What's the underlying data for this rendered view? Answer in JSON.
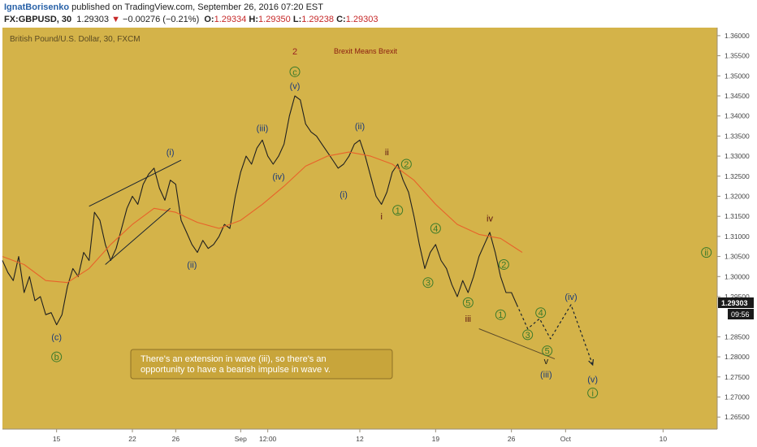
{
  "header": {
    "author": "IgnatBorisenko",
    "published": " published on TradingView.com, September 26, 2016 07:20 EST",
    "symbol": "FX:GBPUSD, 30",
    "last": "1.29303",
    "arrow": "▼",
    "change": "−0.00276 (−0.21%)",
    "o_label": "O:",
    "o": "1.29334",
    "h_label": "H:",
    "h": "1.29350",
    "l_label": "L:",
    "l": "1.29238",
    "c_label": "C:",
    "c": "1.29303"
  },
  "chart": {
    "instrument": "British Pound/U.S. Dollar, 30, FXCM",
    "annotation_title": "Brexit Means Brexit",
    "callout_text_1": "There's an extension in wave (iii), so there's an",
    "callout_text_2": "opportunity to have a bearish impulse in wave v.",
    "price_tag": "1.29303",
    "countdown_tag": "09:56"
  },
  "chart_data": {
    "type": "line",
    "title": "British Pound/U.S. Dollar, 30, FXCM",
    "x_ticks": [
      {
        "label": "15",
        "t": 15
      },
      {
        "label": "22",
        "t": 22
      },
      {
        "label": "26",
        "t": 26
      },
      {
        "label": "Sep",
        "t": 32
      },
      {
        "label": "12:00",
        "t": 34.5
      },
      {
        "label": "12",
        "t": 43
      },
      {
        "label": "19",
        "t": 50
      },
      {
        "label": "26",
        "t": 57
      },
      {
        "label": "Oct",
        "t": 62
      },
      {
        "label": "10",
        "t": 71
      }
    ],
    "x_range": [
      10.0,
      76.0
    ],
    "ylim": [
      1.262,
      1.362
    ],
    "y_ticks": [
      "1.36000",
      "1.35500",
      "1.35000",
      "1.34500",
      "1.34000",
      "1.33500",
      "1.33000",
      "1.32500",
      "1.32000",
      "1.31500",
      "1.31000",
      "1.30500",
      "1.30000",
      "1.29500",
      "1.28500",
      "1.28000",
      "1.27500",
      "1.27000",
      "1.26500"
    ],
    "series": [
      {
        "color": "#1f1f1f",
        "points": [
          [
            10.0,
            1.304
          ],
          [
            10.5,
            1.301
          ],
          [
            11.0,
            1.299
          ],
          [
            11.5,
            1.305
          ],
          [
            12.0,
            1.296
          ],
          [
            12.5,
            1.3
          ],
          [
            13.0,
            1.294
          ],
          [
            13.5,
            1.295
          ],
          [
            14.0,
            1.2905
          ],
          [
            14.5,
            1.291
          ],
          [
            15.0,
            1.288
          ],
          [
            15.5,
            1.2905
          ],
          [
            16.0,
            1.2975
          ],
          [
            16.5,
            1.302
          ],
          [
            17.0,
            1.3
          ],
          [
            17.5,
            1.306
          ],
          [
            18.0,
            1.304
          ],
          [
            18.5,
            1.316
          ],
          [
            19.0,
            1.314
          ],
          [
            19.5,
            1.308
          ],
          [
            20.0,
            1.304
          ],
          [
            20.5,
            1.307
          ],
          [
            21.0,
            1.312
          ],
          [
            21.5,
            1.317
          ],
          [
            22.0,
            1.32
          ],
          [
            22.5,
            1.318
          ],
          [
            23.0,
            1.323
          ],
          [
            23.5,
            1.3255
          ],
          [
            24.0,
            1.327
          ],
          [
            24.5,
            1.322
          ],
          [
            25.0,
            1.319
          ],
          [
            25.5,
            1.324
          ],
          [
            26.0,
            1.323
          ],
          [
            26.5,
            1.314
          ],
          [
            27.0,
            1.311
          ],
          [
            27.5,
            1.308
          ],
          [
            28.0,
            1.306
          ],
          [
            28.5,
            1.309
          ],
          [
            29.0,
            1.307
          ],
          [
            29.5,
            1.308
          ],
          [
            30.0,
            1.31
          ],
          [
            30.5,
            1.313
          ],
          [
            31.0,
            1.312
          ],
          [
            31.5,
            1.32
          ],
          [
            32.0,
            1.326
          ],
          [
            32.5,
            1.33
          ],
          [
            33.0,
            1.328
          ],
          [
            33.5,
            1.332
          ],
          [
            34.0,
            1.334
          ],
          [
            34.5,
            1.33
          ],
          [
            35.0,
            1.328
          ],
          [
            35.5,
            1.33
          ],
          [
            36.0,
            1.333
          ],
          [
            36.5,
            1.34
          ],
          [
            37.0,
            1.345
          ],
          [
            37.5,
            1.344
          ],
          [
            38.0,
            1.338
          ],
          [
            38.5,
            1.336
          ],
          [
            39.0,
            1.335
          ],
          [
            39.5,
            1.333
          ],
          [
            40.0,
            1.331
          ],
          [
            40.5,
            1.329
          ],
          [
            41.0,
            1.327
          ],
          [
            41.5,
            1.328
          ],
          [
            42.0,
            1.33
          ],
          [
            42.5,
            1.333
          ],
          [
            43.0,
            1.334
          ],
          [
            43.5,
            1.33
          ],
          [
            44.0,
            1.325
          ],
          [
            44.5,
            1.32
          ],
          [
            45.0,
            1.318
          ],
          [
            45.5,
            1.321
          ],
          [
            46.0,
            1.326
          ],
          [
            46.5,
            1.328
          ],
          [
            47.0,
            1.324
          ],
          [
            47.5,
            1.321
          ],
          [
            48.0,
            1.315
          ],
          [
            48.5,
            1.308
          ],
          [
            49.0,
            1.302
          ],
          [
            49.5,
            1.306
          ],
          [
            50.0,
            1.308
          ],
          [
            50.5,
            1.304
          ],
          [
            51.0,
            1.302
          ],
          [
            51.5,
            1.298
          ],
          [
            52.0,
            1.295
          ],
          [
            52.5,
            1.299
          ],
          [
            53.0,
            1.296
          ],
          [
            53.5,
            1.3
          ],
          [
            54.0,
            1.305
          ],
          [
            54.5,
            1.308
          ],
          [
            55.0,
            1.311
          ],
          [
            55.5,
            1.306
          ],
          [
            56.0,
            1.3
          ],
          [
            56.5,
            1.296
          ],
          [
            57.0,
            1.296
          ],
          [
            57.5,
            1.293
          ]
        ]
      },
      {
        "color": "#e8622a",
        "points": [
          [
            10.0,
            1.305
          ],
          [
            12.0,
            1.303
          ],
          [
            14.0,
            1.299
          ],
          [
            16.0,
            1.2985
          ],
          [
            18.0,
            1.302
          ],
          [
            20.0,
            1.308
          ],
          [
            22.0,
            1.313
          ],
          [
            24.0,
            1.317
          ],
          [
            26.0,
            1.316
          ],
          [
            28.0,
            1.3135
          ],
          [
            30.0,
            1.312
          ],
          [
            32.0,
            1.314
          ],
          [
            34.0,
            1.318
          ],
          [
            36.0,
            1.3225
          ],
          [
            38.0,
            1.3275
          ],
          [
            40.0,
            1.33
          ],
          [
            42.0,
            1.331
          ],
          [
            44.0,
            1.33
          ],
          [
            46.0,
            1.328
          ],
          [
            48.0,
            1.324
          ],
          [
            50.0,
            1.318
          ],
          [
            52.0,
            1.313
          ],
          [
            54.0,
            1.3105
          ],
          [
            56.0,
            1.3095
          ],
          [
            58.0,
            1.306
          ]
        ]
      },
      {
        "color": "#1a2430",
        "dashed": true,
        "points": [
          [
            57.5,
            1.293
          ],
          [
            58.5,
            1.287
          ],
          [
            59.6,
            1.2895
          ],
          [
            60.6,
            1.2845
          ],
          [
            62.5,
            1.293
          ],
          [
            64.5,
            1.278
          ]
        ]
      }
    ],
    "trend_lines": [
      {
        "color": "#1a2430",
        "from": [
          18.0,
          1.3175
        ],
        "to": [
          26.5,
          1.329
        ]
      },
      {
        "color": "#1a2430",
        "from": [
          19.5,
          1.303
        ],
        "to": [
          25.5,
          1.317
        ]
      },
      {
        "color": "#5a4a2a",
        "from": [
          61.0,
          1.2795
        ],
        "to": [
          54.0,
          1.287
        ]
      }
    ],
    "wave_labels": [
      {
        "text": "(c)",
        "t": 15.0,
        "p": 1.285,
        "style": "plain",
        "color": "#1a3a7a"
      },
      {
        "text": "b",
        "t": 15.0,
        "p": 1.28,
        "style": "circle",
        "color": "#3a7a2a"
      },
      {
        "text": "(i)",
        "t": 25.5,
        "p": 1.331,
        "style": "plain",
        "color": "#1a3a7a"
      },
      {
        "text": "(ii)",
        "t": 27.5,
        "p": 1.303,
        "style": "plain",
        "color": "#1a3a7a"
      },
      {
        "text": "(iii)",
        "t": 34.0,
        "p": 1.337,
        "style": "plain",
        "color": "#1a3a7a"
      },
      {
        "text": "(iv)",
        "t": 35.5,
        "p": 1.325,
        "style": "plain",
        "color": "#1a3a7a"
      },
      {
        "text": "(v)",
        "t": 37.0,
        "p": 1.3475,
        "style": "plain",
        "color": "#1a3a7a"
      },
      {
        "text": "c",
        "t": 37.0,
        "p": 1.351,
        "style": "circle",
        "color": "#3a7a2a"
      },
      {
        "text": "2",
        "t": 37.0,
        "p": 1.3565,
        "style": "big",
        "color": "#9a2222"
      },
      {
        "text": "(i)",
        "t": 41.5,
        "p": 1.3205,
        "style": "plain",
        "color": "#1a3a7a"
      },
      {
        "text": "(ii)",
        "t": 43.0,
        "p": 1.3375,
        "style": "plain",
        "color": "#1a3a7a"
      },
      {
        "text": "ii",
        "t": 45.5,
        "p": 1.331,
        "style": "plain",
        "color": "#5a1010"
      },
      {
        "text": "i",
        "t": 45.0,
        "p": 1.315,
        "style": "plain",
        "color": "#5a1010"
      },
      {
        "text": "1",
        "t": 46.5,
        "p": 1.3165,
        "style": "circle",
        "color": "#3a7a2a"
      },
      {
        "text": "2",
        "t": 47.3,
        "p": 1.328,
        "style": "circle",
        "color": "#3a7a2a"
      },
      {
        "text": "4",
        "t": 50.0,
        "p": 1.312,
        "style": "circle",
        "color": "#3a7a2a"
      },
      {
        "text": "3",
        "t": 49.3,
        "p": 1.2985,
        "style": "circle",
        "color": "#3a7a2a"
      },
      {
        "text": "5",
        "t": 53.0,
        "p": 1.2935,
        "style": "circle",
        "color": "#3a7a2a"
      },
      {
        "text": "iii",
        "t": 53.0,
        "p": 1.2895,
        "style": "plain",
        "color": "#5a1010"
      },
      {
        "text": "iv",
        "t": 55.0,
        "p": 1.3145,
        "style": "plain",
        "color": "#5a1010"
      },
      {
        "text": "2",
        "t": 56.3,
        "p": 1.303,
        "style": "circle",
        "color": "#3a7a2a"
      },
      {
        "text": "1",
        "t": 56.0,
        "p": 1.2905,
        "style": "circle",
        "color": "#3a7a2a"
      },
      {
        "text": "3",
        "t": 58.5,
        "p": 1.2855,
        "style": "circle",
        "color": "#3a7a2a"
      },
      {
        "text": "4",
        "t": 59.7,
        "p": 1.291,
        "style": "circle",
        "color": "#3a7a2a"
      },
      {
        "text": "5",
        "t": 60.3,
        "p": 1.2815,
        "style": "circle",
        "color": "#3a7a2a"
      },
      {
        "text": "v",
        "t": 60.2,
        "p": 1.279,
        "style": "plain",
        "color": "#1a1a1a"
      },
      {
        "text": "(iii)",
        "t": 60.2,
        "p": 1.2757,
        "style": "plain",
        "color": "#1a3a7a"
      },
      {
        "text": "(iv)",
        "t": 62.5,
        "p": 1.295,
        "style": "plain",
        "color": "#1a3a7a"
      },
      {
        "text": "(v)",
        "t": 64.5,
        "p": 1.2745,
        "style": "plain",
        "color": "#1a3a7a"
      },
      {
        "text": "i",
        "t": 64.5,
        "p": 1.271,
        "style": "circle",
        "color": "#3a7a2a"
      },
      {
        "text": "ii",
        "t": 75.0,
        "p": 1.306,
        "style": "circle",
        "color": "#3a7a2a"
      }
    ],
    "last_price": 1.29303,
    "grid": false,
    "background": "#d4b349",
    "callout_background": "#c8a53b"
  }
}
